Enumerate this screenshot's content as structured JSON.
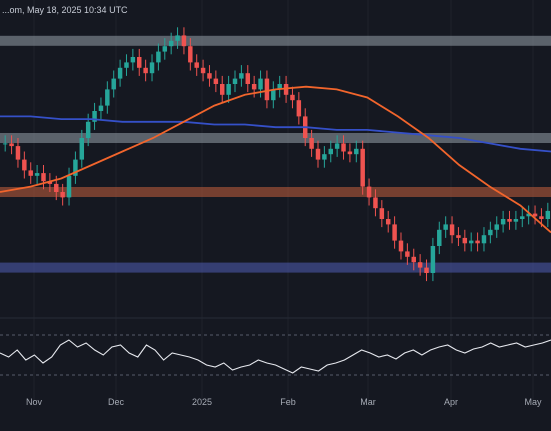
{
  "header": {
    "source_text": "...om, May 18, 2025 10:34 UTC"
  },
  "colors": {
    "background": "#151821",
    "candle_up": "#26a69a",
    "candle_down": "#ef5350",
    "ma_orange": "#f2652c",
    "ma_blue": "#3550c8",
    "zone_gray": "#8a949c",
    "zone_orange": "#b55a3a",
    "zone_blue": "#4b58a8",
    "rsi_line": "#e6e8ee",
    "grid": "#1e222c",
    "axis_text": "#a6abb5"
  },
  "chart_data": {
    "type": "candlestick",
    "title": "",
    "xlabel": "",
    "ylabel": "",
    "x_ticks": [
      "Nov",
      "Dec",
      "2025",
      "Feb",
      "Mar",
      "Apr",
      "May"
    ],
    "price_series_close": [
      58,
      57,
      52,
      48,
      46,
      47,
      44,
      43,
      40,
      38,
      46,
      52,
      60,
      66,
      70,
      72,
      78,
      82,
      86,
      88,
      90,
      86,
      84,
      88,
      92,
      94,
      96,
      98,
      94,
      88,
      86,
      84,
      82,
      80,
      76,
      80,
      82,
      84,
      80,
      78,
      82,
      74,
      78,
      80,
      76,
      74,
      68,
      60,
      56,
      52,
      54,
      56,
      58,
      55,
      54,
      56,
      42,
      38,
      34,
      30,
      28,
      22,
      18,
      16,
      14,
      12,
      10,
      20,
      26,
      28,
      24,
      23,
      21,
      22,
      21,
      24,
      26,
      28,
      30,
      29,
      30,
      31,
      32,
      31,
      30,
      33
    ],
    "ma_orange_series": [
      40,
      42,
      45,
      50,
      55,
      60,
      66,
      72,
      76,
      78,
      79,
      78,
      75,
      68,
      60,
      50,
      42,
      35,
      25
    ],
    "ma_blue_series": [
      68,
      68,
      67,
      67,
      66,
      66,
      66,
      65,
      65,
      64,
      64,
      63,
      63,
      62,
      61,
      60,
      58,
      56,
      55
    ],
    "zones": [
      {
        "name": "upper-resistance-zone",
        "level": 96
      },
      {
        "name": "mid-gray-zone",
        "level": 60
      },
      {
        "name": "orange-support-zone",
        "level": 40
      },
      {
        "name": "blue-support-zone",
        "level": 12
      }
    ],
    "rsi_series": [
      52,
      48,
      55,
      45,
      50,
      42,
      48,
      60,
      65,
      58,
      62,
      55,
      50,
      58,
      60,
      52,
      48,
      60,
      55,
      45,
      52,
      50,
      48,
      45,
      40,
      38,
      42,
      35,
      38,
      40,
      45,
      42,
      40,
      36,
      32,
      38,
      36,
      34,
      40,
      42,
      45,
      50,
      55,
      52,
      48,
      50,
      46,
      52,
      55,
      50,
      55,
      58,
      60,
      55,
      52,
      56,
      58,
      62,
      58,
      60,
      62,
      58,
      60,
      62,
      65
    ]
  }
}
